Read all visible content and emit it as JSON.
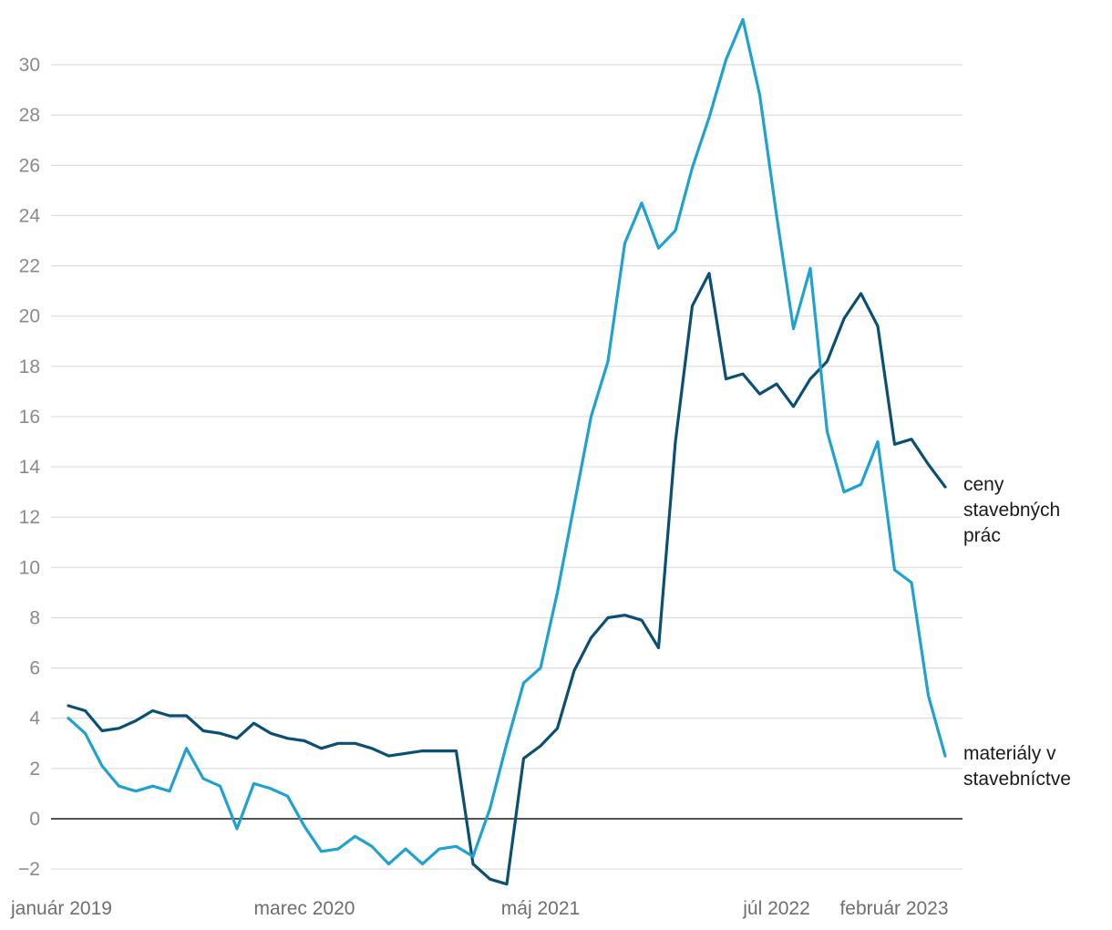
{
  "chart_data": {
    "type": "line",
    "title": "",
    "xlabel": "",
    "ylabel": "",
    "ylim": [
      -2.7,
      32
    ],
    "yticks": [
      -2,
      0,
      2,
      4,
      6,
      8,
      10,
      12,
      14,
      16,
      18,
      20,
      22,
      24,
      26,
      28,
      30
    ],
    "ytick_labels": [
      "−2",
      "0",
      "2",
      "4",
      "6",
      "8",
      "10",
      "12",
      "14",
      "16",
      "18",
      "20",
      "22",
      "24",
      "26",
      "28",
      "30"
    ],
    "x_start": "2019-01",
    "x_count": 53,
    "xtick_labels": [
      {
        "index": 0,
        "label": "január 2019"
      },
      {
        "index": 14,
        "label": "marec 2020"
      },
      {
        "index": 28,
        "label": "máj 2021"
      },
      {
        "index": 42,
        "label": "júl 2022"
      },
      {
        "index": 49,
        "label": "február 2023"
      }
    ],
    "grid": true,
    "zero_line": true,
    "series": [
      {
        "name": "ceny stavebných prác",
        "label_lines": [
          "ceny",
          "stavebných",
          "prác"
        ],
        "color": "#0b4f72",
        "values": [
          4.5,
          4.3,
          3.5,
          3.6,
          3.9,
          4.3,
          4.1,
          4.1,
          3.5,
          3.4,
          3.2,
          3.8,
          3.4,
          3.2,
          3.1,
          2.8,
          3.0,
          3.0,
          2.8,
          2.5,
          2.6,
          2.7,
          2.7,
          2.7,
          -1.8,
          -2.4,
          -2.6,
          2.4,
          2.9,
          3.6,
          5.9,
          7.2,
          8.0,
          8.1,
          7.9,
          6.8,
          15.0,
          20.4,
          21.7,
          17.5,
          17.7,
          16.9,
          17.3,
          16.4,
          17.5,
          18.2,
          19.9,
          20.9,
          19.6,
          14.9,
          15.1,
          14.1,
          13.2
        ]
      },
      {
        "name": "materiály v stavebníctve",
        "label_lines": [
          "materiály v",
          "stavebníctve"
        ],
        "color": "#1fa2cf",
        "values": [
          4.0,
          3.4,
          2.1,
          1.3,
          1.1,
          1.3,
          1.1,
          2.8,
          1.6,
          1.3,
          -0.4,
          1.4,
          1.2,
          0.9,
          -0.3,
          -1.3,
          -1.2,
          -0.7,
          -1.1,
          -1.8,
          -1.2,
          -1.8,
          -1.2,
          -1.1,
          -1.5,
          0.4,
          3.0,
          5.4,
          6.0,
          9.0,
          12.5,
          16.0,
          18.2,
          22.9,
          24.5,
          22.7,
          23.4,
          25.9,
          27.9,
          30.2,
          31.8,
          28.8,
          24.0,
          19.5,
          21.9,
          15.4,
          13.0,
          13.3,
          15.0,
          9.9,
          9.4,
          4.9,
          2.5
        ]
      }
    ]
  }
}
